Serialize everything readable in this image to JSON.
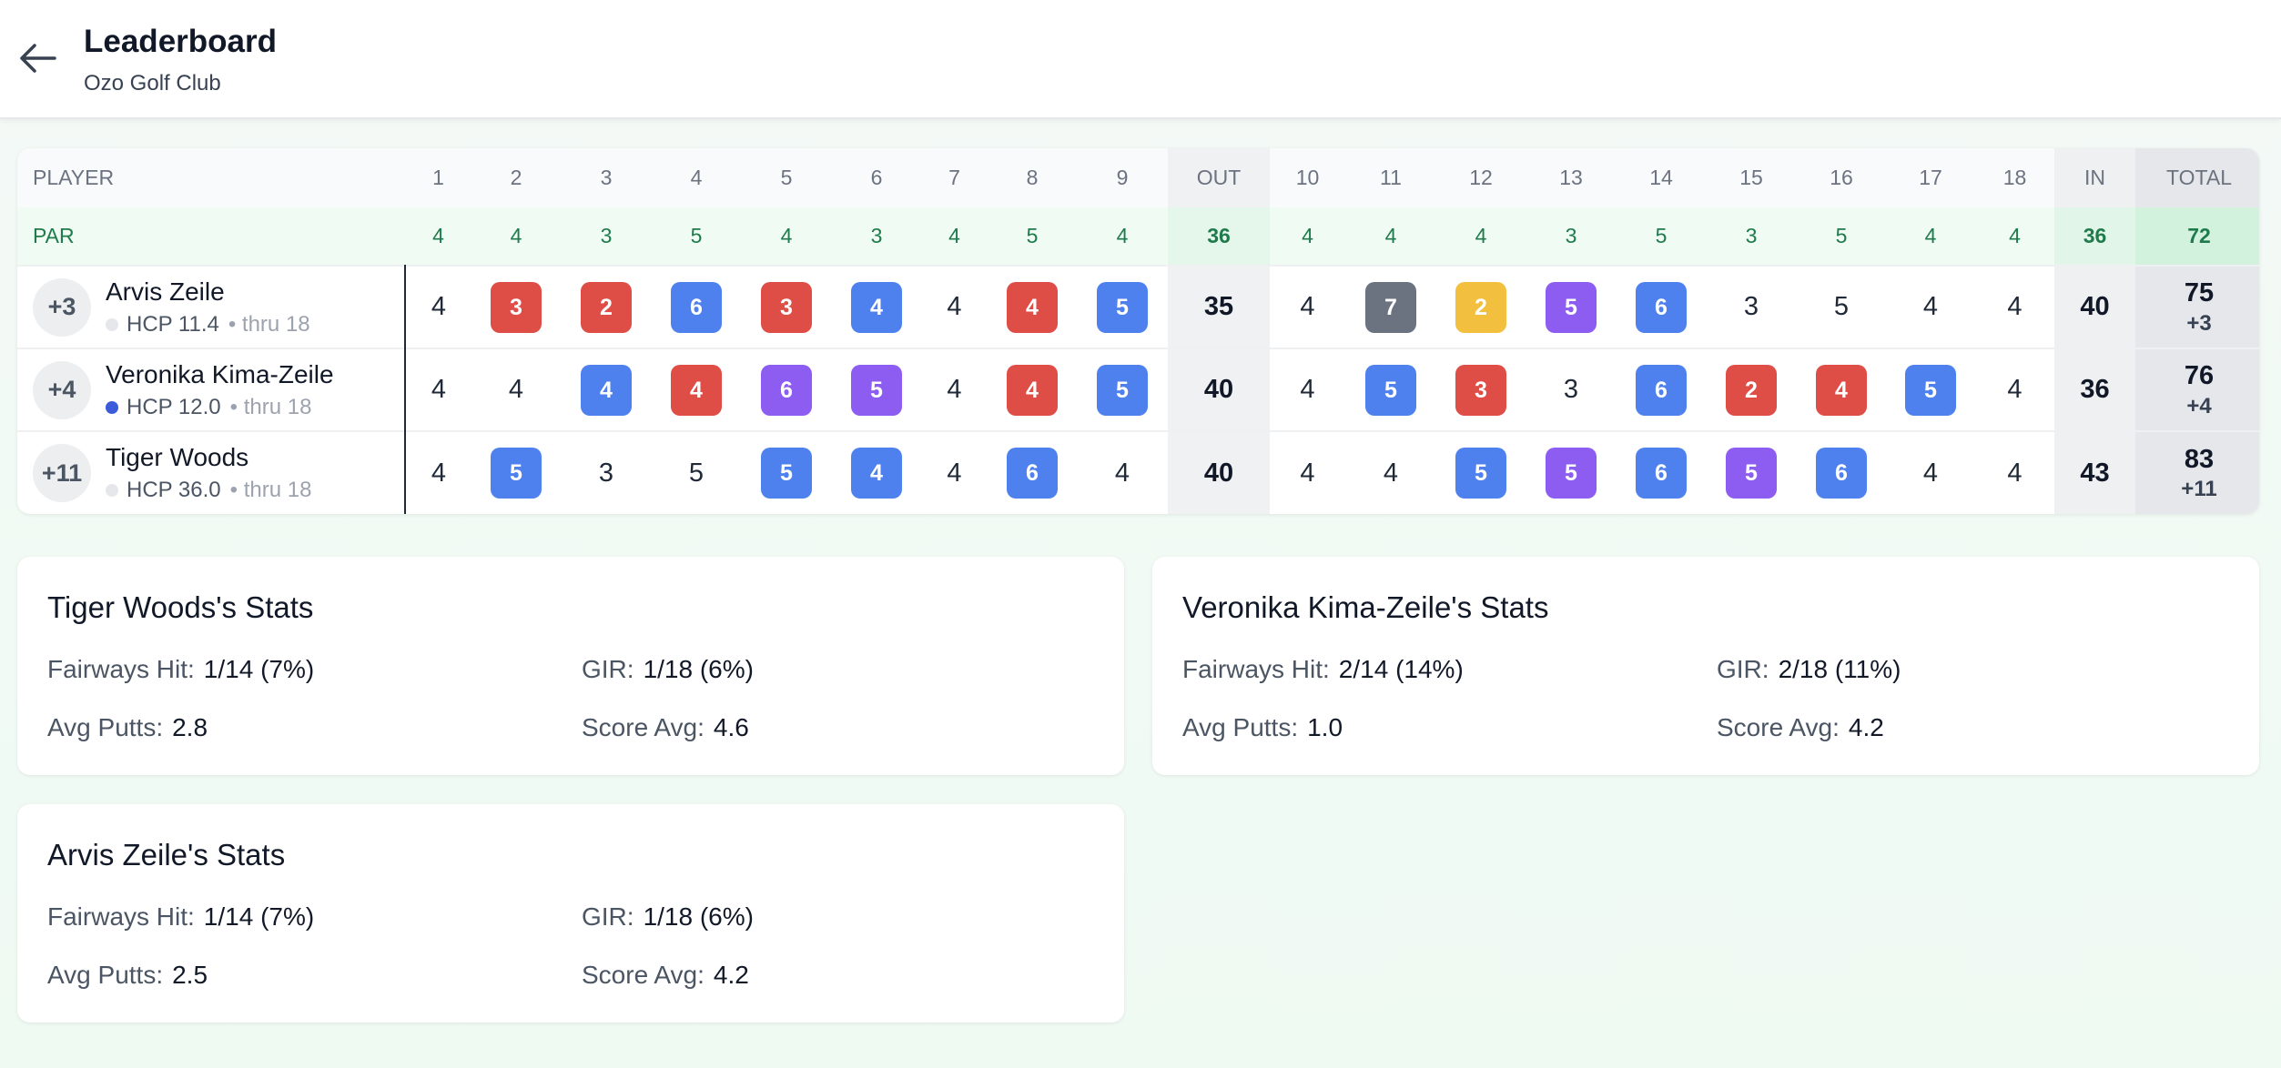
{
  "header": {
    "title": "Leaderboard",
    "subtitle": "Ozo Golf Club"
  },
  "table": {
    "player_header": "PLAYER",
    "out_label": "OUT",
    "in_label": "IN",
    "total_label": "TOTAL",
    "par_label": "PAR",
    "holes": [
      "1",
      "2",
      "3",
      "4",
      "5",
      "6",
      "7",
      "8",
      "9",
      "10",
      "11",
      "12",
      "13",
      "14",
      "15",
      "16",
      "17",
      "18"
    ],
    "par": [
      "4",
      "4",
      "3",
      "5",
      "4",
      "3",
      "4",
      "5",
      "4",
      "4",
      "4",
      "4",
      "3",
      "5",
      "3",
      "5",
      "4",
      "4"
    ],
    "par_out": "36",
    "par_in": "36",
    "par_total": "72"
  },
  "colors": {
    "blue": "#4f81ee",
    "red": "#df4d47",
    "purple": "#8d5cf0",
    "gray": "#6b7280",
    "yellow": "#f3bf3f",
    "par_green": "#1f7a4c"
  },
  "players": [
    {
      "rel": "+3",
      "name": "Arvis Zeile",
      "hcp": "HCP 11.4",
      "thru": "• thru 18",
      "dot_color": "#e5e7eb",
      "scores": [
        "4",
        "3",
        "2",
        "6",
        "3",
        "4",
        "4",
        "4",
        "5",
        "4",
        "7",
        "2",
        "5",
        "6",
        "3",
        "5",
        "4",
        "4"
      ],
      "styles": [
        "",
        "red",
        "red",
        "blue",
        "red",
        "blue",
        "",
        "red",
        "blue",
        "",
        "gray",
        "yellow",
        "purple",
        "blue",
        "",
        "",
        "",
        ""
      ],
      "out": "35",
      "in": "40",
      "total": "75",
      "total_rel": "+3"
    },
    {
      "rel": "+4",
      "name": "Veronika Kima-Zeile",
      "hcp": "HCP 12.0",
      "thru": "• thru 18",
      "dot_color": "#3b5bdb",
      "scores": [
        "4",
        "4",
        "4",
        "4",
        "6",
        "5",
        "4",
        "4",
        "5",
        "4",
        "5",
        "3",
        "3",
        "6",
        "2",
        "4",
        "5",
        "4"
      ],
      "styles": [
        "",
        "",
        "blue",
        "red",
        "purple",
        "purple",
        "",
        "red",
        "blue",
        "",
        "blue",
        "red",
        "",
        "blue",
        "red",
        "red",
        "blue",
        ""
      ],
      "out": "40",
      "in": "36",
      "total": "76",
      "total_rel": "+4"
    },
    {
      "rel": "+11",
      "name": "Tiger Woods",
      "hcp": "HCP 36.0",
      "thru": "• thru 18",
      "dot_color": "#e5e7eb",
      "scores": [
        "4",
        "5",
        "3",
        "5",
        "5",
        "4",
        "4",
        "6",
        "4",
        "4",
        "4",
        "5",
        "5",
        "6",
        "5",
        "6",
        "4",
        "4"
      ],
      "styles": [
        "",
        "blue",
        "",
        "",
        "blue",
        "blue",
        "",
        "blue",
        "",
        "",
        "",
        "blue",
        "purple",
        "blue",
        "purple",
        "blue",
        "",
        ""
      ],
      "out": "40",
      "in": "43",
      "total": "83",
      "total_rel": "+11"
    }
  ],
  "stats": {
    "fairways_label": "Fairways Hit:",
    "gir_label": "GIR:",
    "putts_label": "Avg Putts:",
    "score_label": "Score Avg:",
    "cards": [
      {
        "title": "Tiger Woods's Stats",
        "fairways": "1/14 (7%)",
        "gir": "1/18 (6%)",
        "putts": "2.8",
        "score": "4.6"
      },
      {
        "title": "Veronika Kima-Zeile's Stats",
        "fairways": "2/14 (14%)",
        "gir": "2/18 (11%)",
        "putts": "1.0",
        "score": "4.2"
      },
      {
        "title": "Arvis Zeile's Stats",
        "fairways": "1/14 (7%)",
        "gir": "1/18 (6%)",
        "putts": "2.5",
        "score": "4.2"
      }
    ]
  }
}
